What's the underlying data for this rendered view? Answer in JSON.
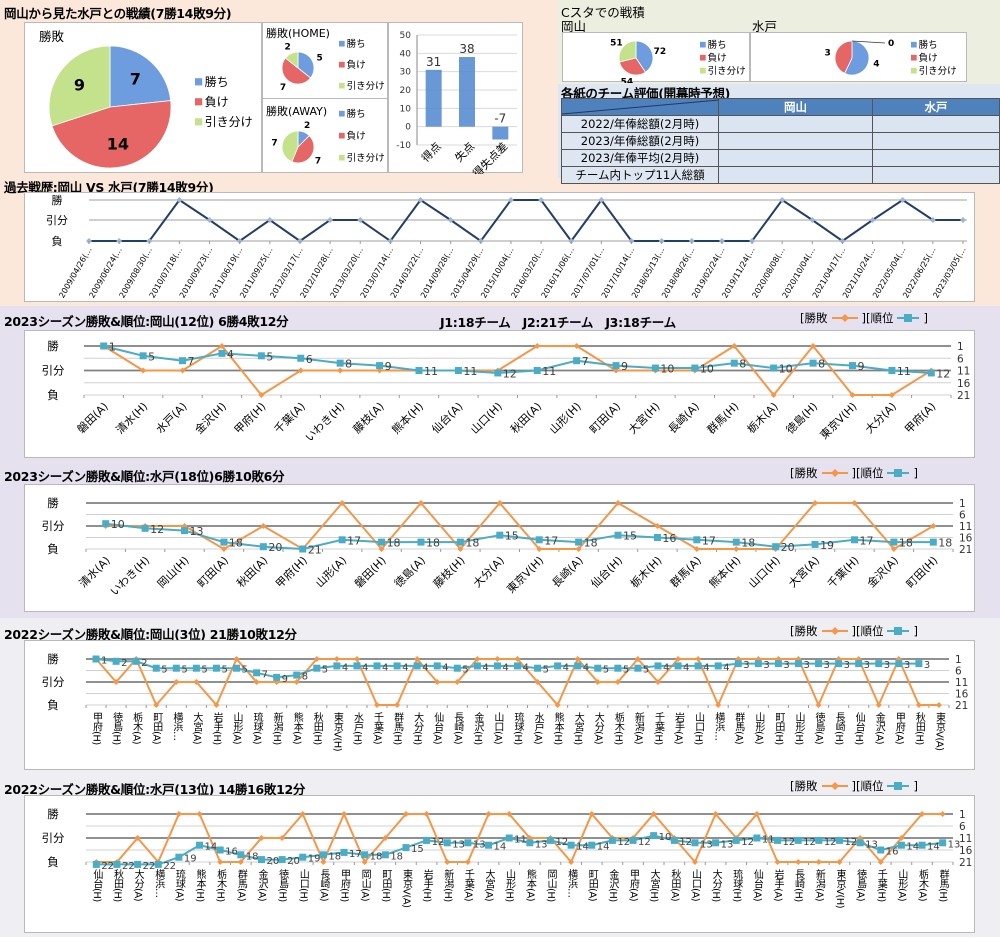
{
  "header": {
    "title": "岡山から見た水戸との戦績(7勝14敗9分)"
  },
  "colors": {
    "pie_win": "#6e9ddf",
    "pie_loss": "#e66565",
    "pie_draw": "#c4e28c",
    "bar": "#4f86d0",
    "result_line": "#f79646",
    "rank_line": "#4bacc6",
    "history_line": "#243f66",
    "history_marker": "#9fb4d6",
    "table_header": "#4f81bd"
  },
  "axis": {
    "win": "勝",
    "draw": "引分",
    "loss": "負"
  },
  "legend": {
    "result_open": "[勝敗",
    "rank_open": "][順位",
    "close": "]"
  },
  "cstadium": {
    "title": "Cスタでの戦積",
    "okayama": "岡山",
    "mito": "水戸"
  },
  "evaluation": {
    "title": "各紙のチーム評価(開幕時予想)",
    "columns": [
      "岡山",
      "水戸"
    ],
    "rows": [
      "2022/年俸総額(2月時)",
      "2023/年俸総額(2月時)",
      "2023/年俸平均(2月時)",
      "チーム内トップ11人総額"
    ]
  },
  "history": {
    "title": "過去戦歴:岡山 VS 水戸(7勝14敗9分)"
  },
  "seasons": [
    {
      "title": "2023シーズン勝敗&順位:岡山(12位) 6勝4敗12分",
      "note": "J1:18チーム　J2:21チーム　J3:18チーム"
    },
    {
      "title": "2023シーズン勝敗&順位:水戸(18位)6勝10敗6分"
    },
    {
      "title": "2022シーズン勝敗&順位:岡山(3位) 21勝10敗12分"
    },
    {
      "title": "2022シーズン勝敗&順位:水戸(13位) 14勝16敗12分"
    }
  ],
  "chart_data": [
    {
      "type": "pie",
      "title": "勝敗",
      "labels": [
        "勝ち",
        "負け",
        "引き分け"
      ],
      "values": [
        7,
        14,
        9
      ]
    },
    {
      "type": "pie",
      "title": "勝敗(HOME)",
      "labels": [
        "勝ち",
        "負け",
        "引き分け"
      ],
      "values": [
        5,
        7,
        2
      ]
    },
    {
      "type": "pie",
      "title": "勝敗(AWAY)",
      "labels": [
        "勝ち",
        "負け",
        "引き分け"
      ],
      "values": [
        2,
        7,
        7
      ]
    },
    {
      "type": "bar",
      "categories": [
        "得点",
        "失点",
        "得失点差"
      ],
      "values": [
        31,
        38,
        -7
      ],
      "ylim": [
        -10,
        50
      ],
      "yticks": [
        50,
        40,
        30,
        20,
        10,
        0,
        -10
      ]
    },
    {
      "type": "pie",
      "title": "岡山",
      "labels": [
        "勝ち",
        "負け",
        "引き分け"
      ],
      "values": [
        72,
        54,
        51
      ]
    },
    {
      "type": "pie",
      "title": "水戸",
      "labels": [
        "勝ち",
        "負け",
        "引き分け"
      ],
      "values": [
        4,
        3,
        0
      ]
    },
    {
      "type": "line",
      "title": "過去戦歴:岡山 VS 水戸(7勝14敗9分)",
      "x": [
        "2009/04/26(…",
        "2009/06/24(…",
        "2009/08/30(…",
        "2010/07/18(…",
        "2010/09/23(…",
        "2011/06/19(…",
        "2011/09/25(…",
        "2012/03/17(…",
        "2012/10/28(…",
        "2013/03/20(…",
        "2013/07/14(…",
        "2014/03/22(…",
        "2014/09/28(…",
        "2015/04/29(…",
        "2015/10/04(…",
        "2016/03/20(…",
        "2016/11/06(…",
        "2017/07/01(…",
        "2017/10/14(…",
        "2018/05/13(…",
        "2018/08/26(…",
        "2019/02/24(…",
        "2019/11/24(…",
        "2020/08/08(…",
        "2020/10/04(…",
        "2021/04/17(…",
        "2021/10/24(…",
        "2022/05/04(…",
        "2022/06/25(…",
        "2023/03/05(…"
      ],
      "values": [
        -1,
        -1,
        -1,
        1,
        0,
        -1,
        0,
        -1,
        0,
        0,
        -1,
        1,
        0,
        -1,
        1,
        1,
        -1,
        1,
        -1,
        -1,
        -1,
        -1,
        -1,
        1,
        0,
        -1,
        0,
        1,
        0,
        0
      ],
      "y_labels": {
        "1": "勝",
        "0": "引分",
        "-1": "負"
      }
    },
    {
      "type": "line",
      "title": "2023シーズン勝敗&順位:岡山(12位) 6勝4敗12分",
      "categories": [
        "磐田(A)",
        "清水(H)",
        "水戸(A)",
        "金沢(H)",
        "甲府(H)",
        "千葉(A)",
        "いわき(H)",
        "藤枝(A)",
        "熊本(H)",
        "仙台(A)",
        "山口(H)",
        "秋田(A)",
        "山形(H)",
        "町田(A)",
        "大宮(H)",
        "長崎(A)",
        "群馬(H)",
        "栃木(A)",
        "徳島(H)",
        "東京V(H)",
        "大分(A)",
        "甲府(A)"
      ],
      "series": [
        {
          "name": "勝敗",
          "values": [
            1,
            0,
            0,
            1,
            -1,
            0,
            0,
            0,
            0,
            0,
            0,
            1,
            1,
            0,
            0,
            0,
            1,
            -1,
            1,
            -1,
            -1,
            0
          ]
        },
        {
          "name": "順位",
          "values": [
            1,
            5,
            7,
            4,
            5,
            6,
            8,
            9,
            11,
            11,
            12,
            11,
            7,
            9,
            10,
            10,
            8,
            10,
            8,
            9,
            11,
            12
          ]
        }
      ],
      "y2lim": [
        1,
        21
      ],
      "y2ticks": [
        1,
        6,
        11,
        16,
        21
      ],
      "label_style": "diagonal"
    },
    {
      "type": "line",
      "title": "2023シーズン勝敗&順位:水戸(18位)6勝10敗6分",
      "categories": [
        "清水(A)",
        "いわき(H)",
        "岡山(H)",
        "町田(A)",
        "秋田(A)",
        "甲府(H)",
        "山形(A)",
        "磐田(H)",
        "徳島(A)",
        "藤枝(H)",
        "大分(A)",
        "東京V(H)",
        "長崎(A)",
        "仙台(H)",
        "栃木(H)",
        "群馬(A)",
        "熊本(H)",
        "山口(H)",
        "大宮(A)",
        "千葉(H)",
        "金沢(A)",
        "町田(H)"
      ],
      "series": [
        {
          "name": "勝敗",
          "values": [
            0,
            0,
            0,
            -1,
            0,
            -1,
            1,
            -1,
            1,
            -1,
            1,
            -1,
            -1,
            1,
            0,
            -1,
            -1,
            -1,
            1,
            1,
            -1,
            0
          ]
        },
        {
          "name": "順位",
          "values": [
            10,
            12,
            13,
            18,
            20,
            21,
            17,
            18,
            18,
            18,
            15,
            17,
            18,
            15,
            16,
            17,
            18,
            20,
            19,
            17,
            18,
            18
          ]
        }
      ],
      "y2lim": [
        1,
        21
      ],
      "y2ticks": [
        1,
        6,
        11,
        16,
        21
      ],
      "label_style": "diagonal"
    },
    {
      "type": "line",
      "title": "2022シーズン勝敗&順位:岡山(3位) 21勝10敗12分",
      "categories": [
        "甲府(H)",
        "徳島(H)",
        "栃木(A)",
        "町田(A)",
        "横浜…",
        "大宮(A)",
        "岩手(H)",
        "山形(A)",
        "琉球(A)",
        "新潟(H)",
        "熊本(A)",
        "秋田(H)",
        "東京V(H)",
        "水戸(H)",
        "千葉(A)",
        "群馬(H)",
        "大分(H)",
        "仙台(A)",
        "長崎(A)",
        "金沢(H)",
        "山口(A)",
        "琉球(H)",
        "水戸(A)",
        "熊本(H)",
        "大宮(H)",
        "大分(A)",
        "栃木(H)",
        "新潟(A)",
        "千葉(H)",
        "岩手(A)",
        "山口(H)",
        "横浜…",
        "群馬(A)",
        "山形(A)",
        "町田(H)",
        "山形(H)",
        "徳島(A)",
        "長崎(H)",
        "仙台(H)",
        "金沢(A)",
        "甲府(A)",
        "秋田(H)",
        "東京V(A)"
      ],
      "series": [
        {
          "name": "勝敗",
          "values": [
            1,
            0,
            1,
            -1,
            0,
            0,
            -1,
            1,
            0,
            0,
            0,
            1,
            1,
            1,
            -1,
            -1,
            1,
            0,
            0,
            1,
            1,
            1,
            0,
            -1,
            1,
            0,
            0,
            1,
            0,
            1,
            1,
            -1,
            1,
            1,
            1,
            1,
            -1,
            1,
            1,
            -1,
            1,
            -1,
            -1
          ]
        },
        {
          "name": "順位",
          "values": [
            1,
            2,
            2,
            5,
            5,
            5,
            5,
            5,
            7,
            9,
            8,
            5,
            4,
            4,
            4,
            4,
            4,
            4,
            5,
            4,
            4,
            4,
            5,
            4,
            4,
            5,
            5,
            5,
            4,
            4,
            4,
            4,
            3,
            3,
            3,
            3,
            3,
            3,
            3,
            3,
            3,
            3,
            null
          ]
        }
      ],
      "y2lim": [
        1,
        21
      ],
      "y2ticks": [
        1,
        6,
        11,
        16,
        21
      ],
      "label_style": "vertical"
    },
    {
      "type": "line",
      "title": "2022シーズン勝敗&順位:水戸(13位) 14勝16敗12分",
      "categories": [
        "仙台(H)",
        "秋田(H)",
        "大分(A)",
        "横浜…",
        "琉球(A)",
        "熊本(H)",
        "栃木(H)",
        "群馬(A)",
        "金沢(A)",
        "徳島(H)",
        "山口(H)",
        "長崎(A)",
        "甲府(H)",
        "岡山(A)",
        "町田(H)",
        "東京V(A)",
        "岩手(H)",
        "新潟(H)",
        "千葉(A)",
        "大宮(A)",
        "山形(H)",
        "熊本(A)",
        "岡山(H)",
        "横浜…",
        "町田(A)",
        "金沢(H)",
        "甲府(A)",
        "大宮(H)",
        "秋田(A)",
        "山口(A)",
        "大分(H)",
        "琉球(H)",
        "仙台(A)",
        "岩手(A)",
        "長崎(H)",
        "新潟(A)",
        "東京V(H)",
        "徳島(A)",
        "千葉(H)",
        "山形(A)",
        "栃木(A)",
        "群馬(H)"
      ],
      "series": [
        {
          "name": "勝敗",
          "values": [
            -1,
            -1,
            0,
            -1,
            1,
            1,
            -1,
            -1,
            0,
            0,
            1,
            -1,
            1,
            -1,
            0,
            1,
            1,
            -1,
            -1,
            1,
            1,
            0,
            0,
            -1,
            1,
            0,
            0,
            1,
            0,
            -1,
            1,
            0,
            1,
            -1,
            -1,
            -1,
            -1,
            0,
            -1,
            0,
            1,
            1
          ]
        },
        {
          "name": "順位",
          "values": [
            22,
            22,
            22,
            22,
            19,
            14,
            16,
            18,
            20,
            20,
            19,
            18,
            17,
            18,
            18,
            15,
            12,
            13,
            13,
            14,
            11,
            13,
            12,
            14,
            14,
            12,
            12,
            10,
            12,
            13,
            13,
            12,
            11,
            12,
            12,
            12,
            12,
            13,
            16,
            14,
            14,
            13
          ]
        }
      ],
      "y2lim": [
        1,
        21
      ],
      "y2ticks": [
        1,
        6,
        11,
        16,
        21
      ],
      "label_style": "vertical"
    }
  ]
}
